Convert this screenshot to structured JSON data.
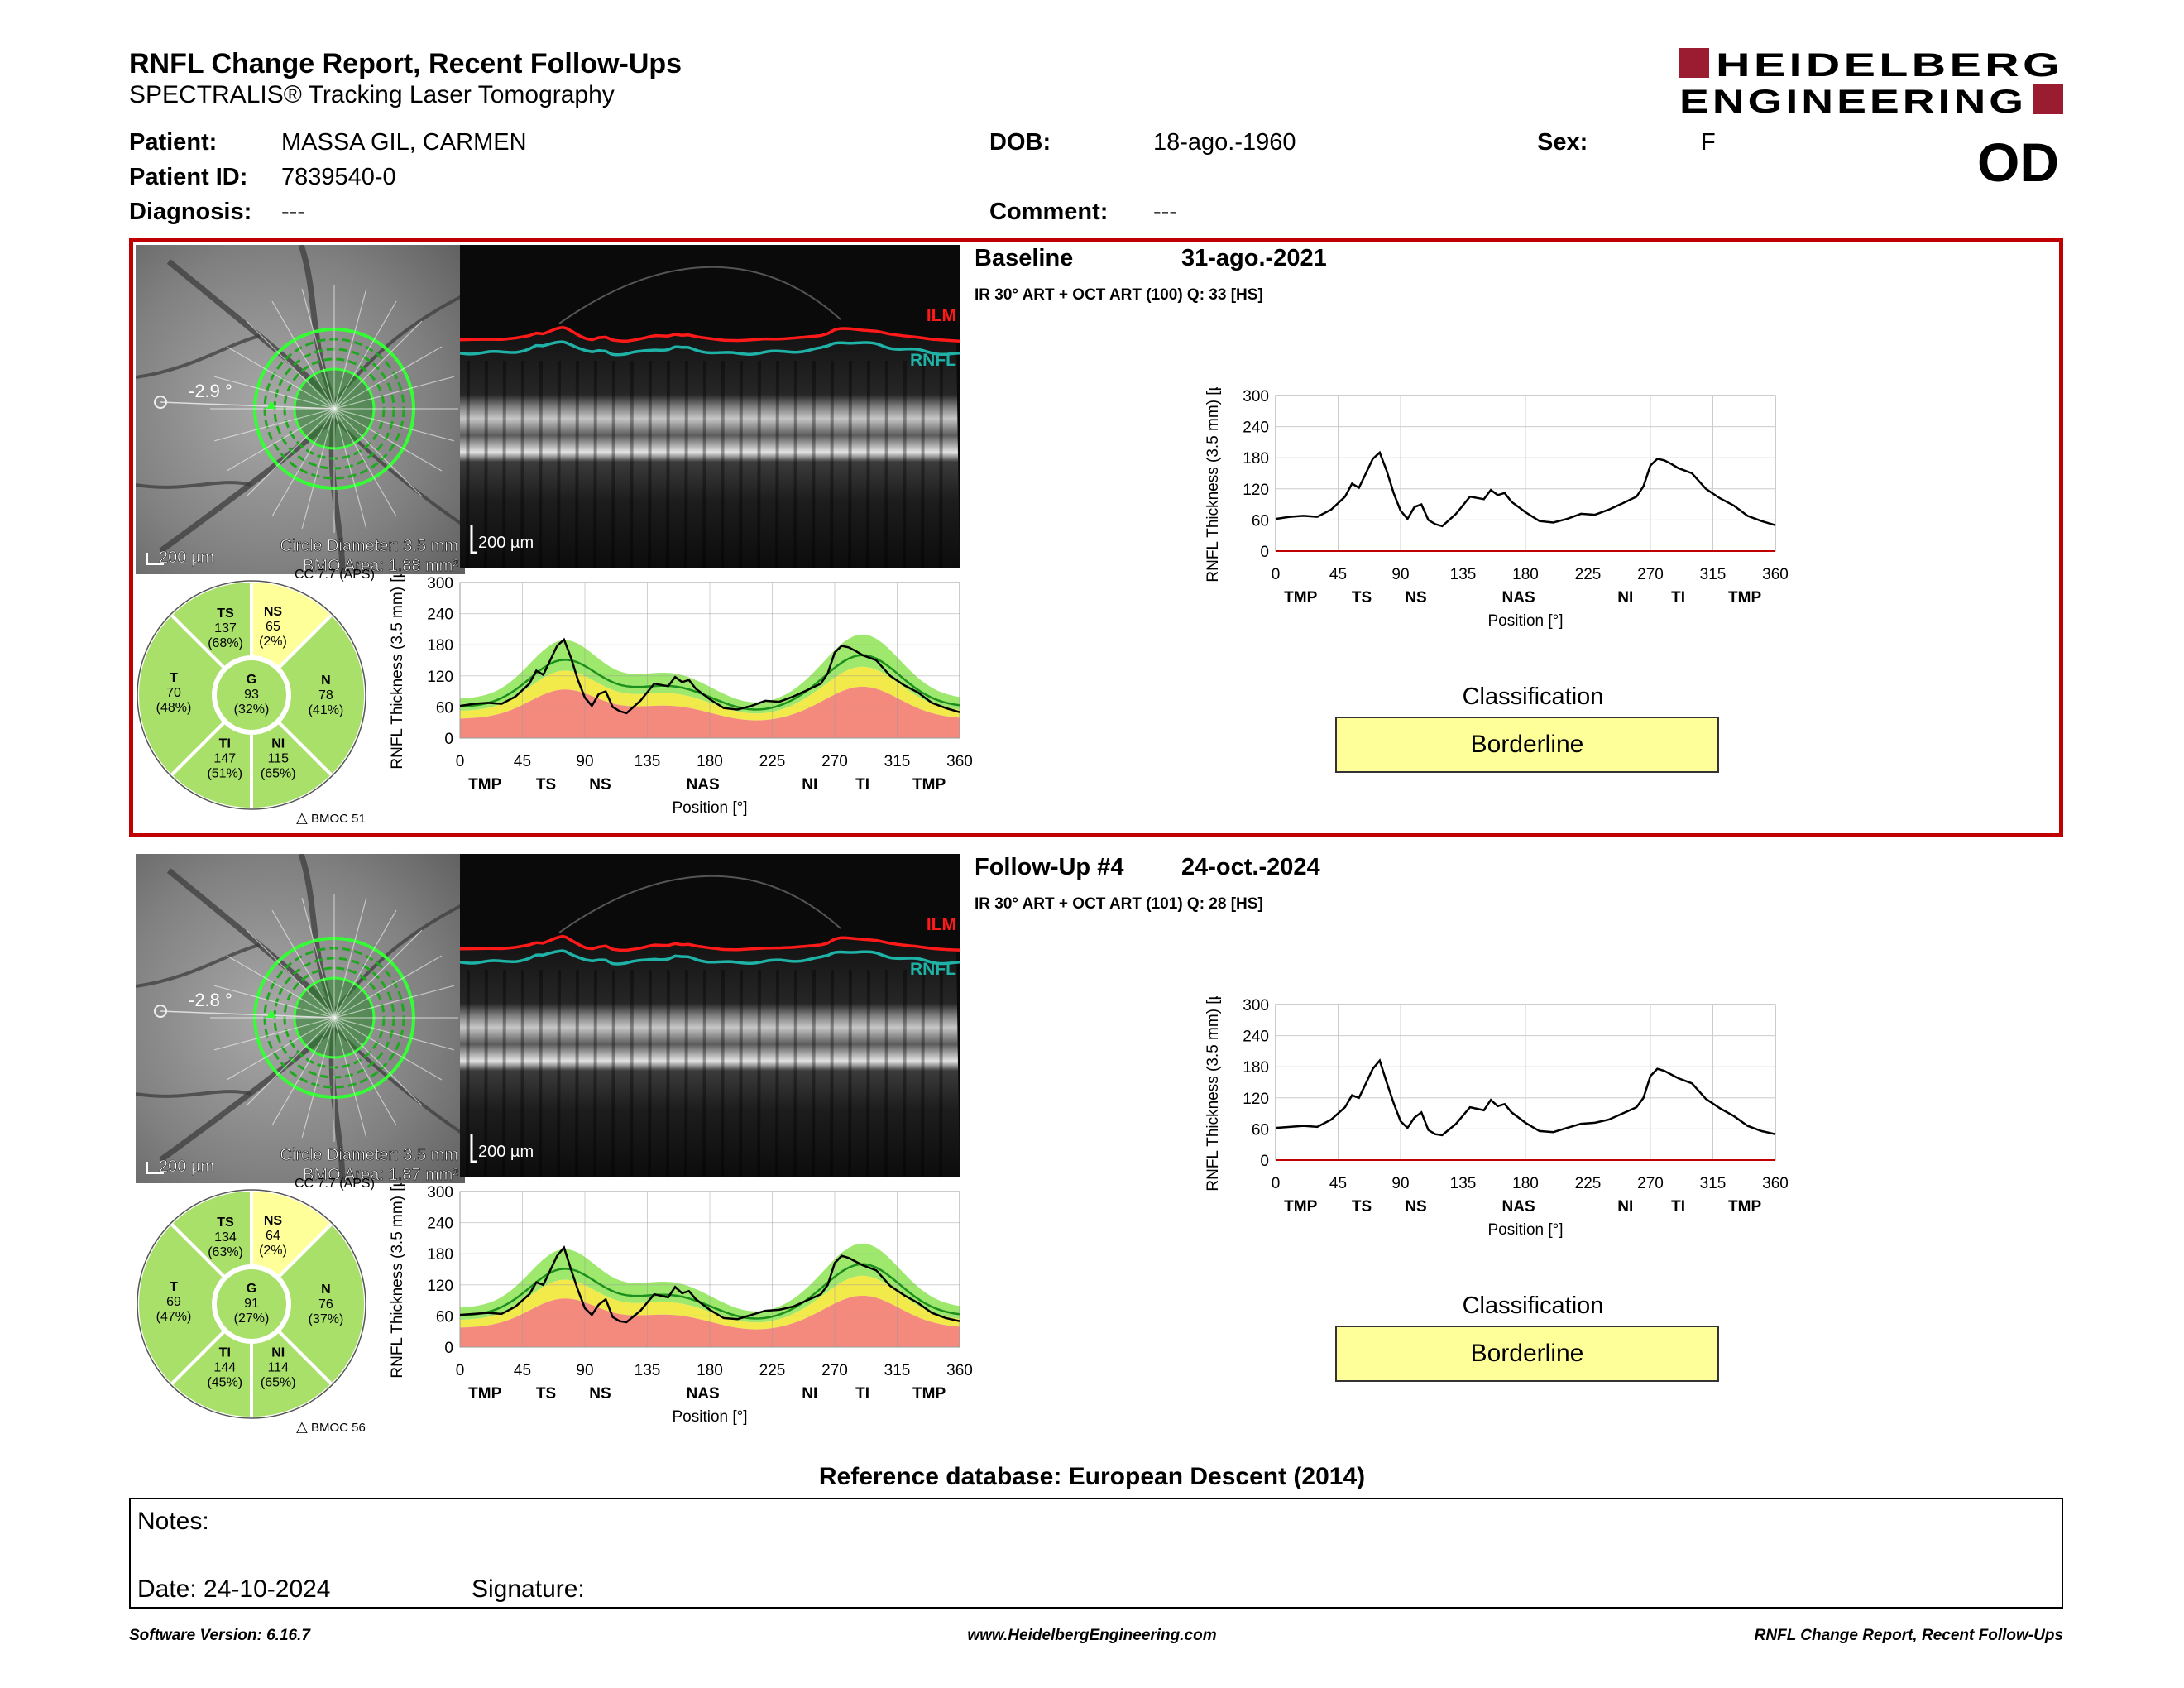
{
  "header": {
    "title": "RNFL Change Report, Recent Follow-Ups",
    "subtitle": "SPECTRALIS® Tracking Laser Tomography",
    "logo_line1": "HEIDELBERG",
    "logo_line2": "ENGINEERING",
    "eye": "OD"
  },
  "patient": {
    "patient_label": "Patient:",
    "patient_value": "MASSA GIL, CARMEN",
    "id_label": "Patient ID:",
    "id_value": "7839540-0",
    "diagnosis_label": "Diagnosis:",
    "diagnosis_value": "---",
    "dob_label": "DOB:",
    "dob_value": "18-ago.-1960",
    "comment_label": "Comment:",
    "comment_value": "---",
    "sex_label": "Sex:",
    "sex_value": "F"
  },
  "scans": [
    {
      "title": "Baseline",
      "date": "31-ago.-2021",
      "details": "IR 30° ART + OCT ART (100) Q: 33 [HS]",
      "angle": "-2.9 °",
      "scale": "200 µm",
      "circle_diameter": "Circle Diameter: 3.5 mm",
      "bmo_area": "BMO Area: 1.88 mm²",
      "cc": "CC 7.7 (APS)",
      "bmoc": "BMOC 51 µm",
      "oct_scale": "200 µm",
      "sectors": {
        "TS": {
          "label": "TS",
          "value": "137",
          "pct": "(68%)",
          "color": "#a8e06a"
        },
        "NS": {
          "label": "NS",
          "value": "65",
          "pct": "(2%)",
          "color": "#ffff99"
        },
        "T": {
          "label": "T",
          "value": "70",
          "pct": "(48%)",
          "color": "#a8e06a"
        },
        "G": {
          "label": "G",
          "value": "93",
          "pct": "(32%)",
          "color": "#a8e06a"
        },
        "N": {
          "label": "N",
          "value": "78",
          "pct": "(41%)",
          "color": "#a8e06a"
        },
        "TI": {
          "label": "TI",
          "value": "147",
          "pct": "(51%)",
          "color": "#a8e06a"
        },
        "NI": {
          "label": "NI",
          "value": "115",
          "pct": "(65%)",
          "color": "#a8e06a"
        }
      },
      "classification_label": "Classification",
      "classification": "Borderline"
    },
    {
      "title": "Follow-Up #4",
      "date": "24-oct.-2024",
      "details": "IR 30° ART + OCT ART (101) Q: 28 [HS]",
      "angle": "-2.8 °",
      "scale": "200 µm",
      "circle_diameter": "Circle Diameter: 3.5 mm",
      "bmo_area": "BMO Area: 1.87 mm²",
      "cc": "CC 7.7 (APS)",
      "bmoc": "BMOC 56 µm",
      "oct_scale": "200 µm",
      "sectors": {
        "TS": {
          "label": "TS",
          "value": "134",
          "pct": "(63%)",
          "color": "#a8e06a"
        },
        "NS": {
          "label": "NS",
          "value": "64",
          "pct": "(2%)",
          "color": "#ffff99"
        },
        "T": {
          "label": "T",
          "value": "69",
          "pct": "(47%)",
          "color": "#a8e06a"
        },
        "G": {
          "label": "G",
          "value": "91",
          "pct": "(27%)",
          "color": "#a8e06a"
        },
        "N": {
          "label": "N",
          "value": "76",
          "pct": "(37%)",
          "color": "#a8e06a"
        },
        "TI": {
          "label": "TI",
          "value": "144",
          "pct": "(45%)",
          "color": "#a8e06a"
        },
        "NI": {
          "label": "NI",
          "value": "114",
          "pct": "(65%)",
          "color": "#a8e06a"
        }
      },
      "classification_label": "Classification",
      "classification": "Borderline"
    }
  ],
  "chart_data": [
    {
      "type": "line",
      "ylabel": "RNFL Thickness (3.5 mm) [µm]",
      "xlabel": "Position [°]",
      "xlim": [
        0,
        360
      ],
      "ylim": [
        0,
        300
      ],
      "xticks": [
        0,
        45,
        90,
        135,
        180,
        225,
        270,
        315,
        360
      ],
      "yticks": [
        0,
        60,
        120,
        180,
        240,
        300
      ],
      "sector_labels": [
        "TMP",
        "TS",
        "NS",
        "NAS",
        "NI",
        "TI",
        "TMP"
      ],
      "sector_positions": [
        18,
        62,
        101,
        175,
        252,
        290,
        338
      ],
      "series": [
        {
          "x": [
            0,
            10,
            20,
            30,
            40,
            50,
            55,
            60,
            65,
            70,
            75,
            80,
            85,
            90,
            95,
            100,
            105,
            110,
            115,
            120,
            130,
            140,
            150,
            155,
            160,
            165,
            170,
            180,
            190,
            200,
            210,
            220,
            230,
            240,
            250,
            260,
            265,
            270,
            275,
            280,
            285,
            290,
            300,
            310,
            320,
            330,
            340,
            350,
            360
          ],
          "values": [
            62,
            66,
            68,
            66,
            80,
            105,
            130,
            122,
            150,
            178,
            190,
            155,
            112,
            78,
            62,
            85,
            90,
            60,
            52,
            48,
            72,
            105,
            100,
            118,
            108,
            112,
            95,
            75,
            58,
            55,
            62,
            72,
            70,
            80,
            92,
            105,
            125,
            165,
            178,
            175,
            168,
            160,
            150,
            120,
            102,
            88,
            68,
            58,
            50
          ]
        }
      ]
    },
    {
      "type": "line",
      "ylabel": "RNFL Thickness (3.5 mm) [µm]",
      "xlabel": "Position [°]",
      "xlim": [
        0,
        360
      ],
      "ylim": [
        0,
        300
      ],
      "xticks": [
        0,
        45,
        90,
        135,
        180,
        225,
        270,
        315,
        360
      ],
      "yticks": [
        0,
        60,
        120,
        180,
        240,
        300
      ],
      "sector_labels": [
        "TMP",
        "TS",
        "NS",
        "NAS",
        "NI",
        "TI",
        "TMP"
      ],
      "sector_positions": [
        18,
        62,
        101,
        175,
        252,
        290,
        338
      ],
      "series": [
        {
          "x": [
            0,
            10,
            20,
            30,
            40,
            50,
            55,
            60,
            65,
            70,
            75,
            80,
            85,
            90,
            95,
            100,
            105,
            110,
            115,
            120,
            130,
            140,
            150,
            155,
            160,
            165,
            170,
            180,
            190,
            200,
            210,
            220,
            230,
            240,
            250,
            260,
            265,
            270,
            275,
            280,
            285,
            290,
            300,
            310,
            320,
            330,
            340,
            350,
            360
          ],
          "values": [
            62,
            64,
            66,
            64,
            78,
            102,
            125,
            120,
            148,
            176,
            192,
            150,
            110,
            75,
            62,
            82,
            92,
            58,
            50,
            48,
            70,
            102,
            96,
            116,
            104,
            108,
            92,
            72,
            56,
            54,
            62,
            70,
            72,
            78,
            90,
            102,
            120,
            162,
            176,
            172,
            165,
            158,
            148,
            118,
            100,
            85,
            66,
            56,
            50
          ]
        }
      ]
    }
  ],
  "reference_db": "Reference database: European Descent (2014)",
  "notes": {
    "notes_label": "Notes:",
    "date_label": "Date: 24-10-2024",
    "signature_label": "Signature:"
  },
  "footer": {
    "version": "Software Version: 6.16.7",
    "website": "www.HeidelbergEngineering.com",
    "report": "RNFL Change Report, Recent Follow-Ups"
  }
}
